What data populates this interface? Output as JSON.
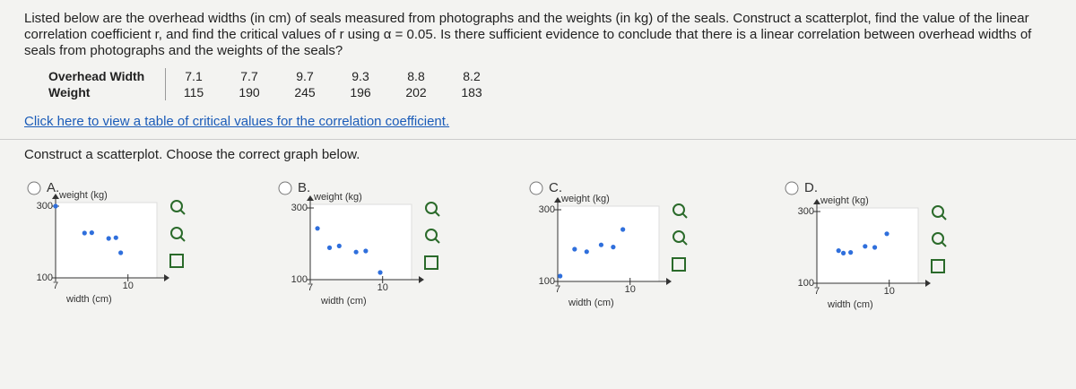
{
  "question": "Listed below are the overhead widths (in cm) of seals measured from photographs and the weights (in kg) of the seals. Construct a scatterplot, find the value of the linear correlation coefficient r, and find the critical values of r using α = 0.05. Is there sufficient evidence to conclude that there is a linear correlation between overhead widths of seals from photographs and the weights of the seals?",
  "table": {
    "rows": [
      [
        "Overhead Width",
        "7.1",
        "7.7",
        "9.7",
        "9.3",
        "8.8",
        "8.2"
      ],
      [
        "Weight",
        "115",
        "190",
        "245",
        "196",
        "202",
        "183"
      ]
    ]
  },
  "link": "Click here to view a table of critical values for the correlation coefficient.",
  "prompt": "Construct a scatterplot. Choose the correct graph below.",
  "options": [
    {
      "label": "A.",
      "y_label": "weight (kg)",
      "x_label": "width (cm)",
      "xlim": [
        7,
        11.2
      ],
      "ylim": [
        100,
        310
      ],
      "xticks": [
        7,
        10
      ],
      "yticks": [
        100,
        300
      ],
      "x": [
        7.0,
        8.2,
        8.5,
        9.2,
        9.5,
        9.7
      ],
      "y": [
        300,
        225,
        226,
        210,
        212,
        170
      ]
    },
    {
      "label": "B.",
      "y_label": "weight (kg)",
      "x_label": "width (cm)",
      "xlim": [
        7,
        11.2
      ],
      "ylim": [
        100,
        310
      ],
      "xticks": [
        7,
        10
      ],
      "yticks": [
        100,
        300
      ],
      "x": [
        7.3,
        7.8,
        8.2,
        8.9,
        9.3,
        9.9
      ],
      "y": [
        243,
        189,
        194,
        177,
        180,
        120
      ]
    },
    {
      "label": "C.",
      "y_label": "weight (kg)",
      "x_label": "width (cm)",
      "xlim": [
        7,
        11.2
      ],
      "ylim": [
        100,
        310
      ],
      "xticks": [
        7,
        10
      ],
      "yticks": [
        100,
        300
      ],
      "x": [
        7.1,
        7.7,
        8.2,
        8.8,
        9.3,
        9.7
      ],
      "y": [
        115,
        190,
        183,
        202,
        196,
        245
      ]
    },
    {
      "label": "D.",
      "y_label": "weight (kg)",
      "x_label": "width (cm)",
      "xlim": [
        7,
        11.2
      ],
      "ylim": [
        100,
        310
      ],
      "xticks": [
        7,
        10
      ],
      "yticks": [
        100,
        300
      ],
      "x": [
        7.9,
        8.1,
        8.4,
        9.0,
        9.4,
        9.9
      ],
      "y": [
        191,
        184,
        186,
        203,
        200,
        238
      ]
    }
  ]
}
